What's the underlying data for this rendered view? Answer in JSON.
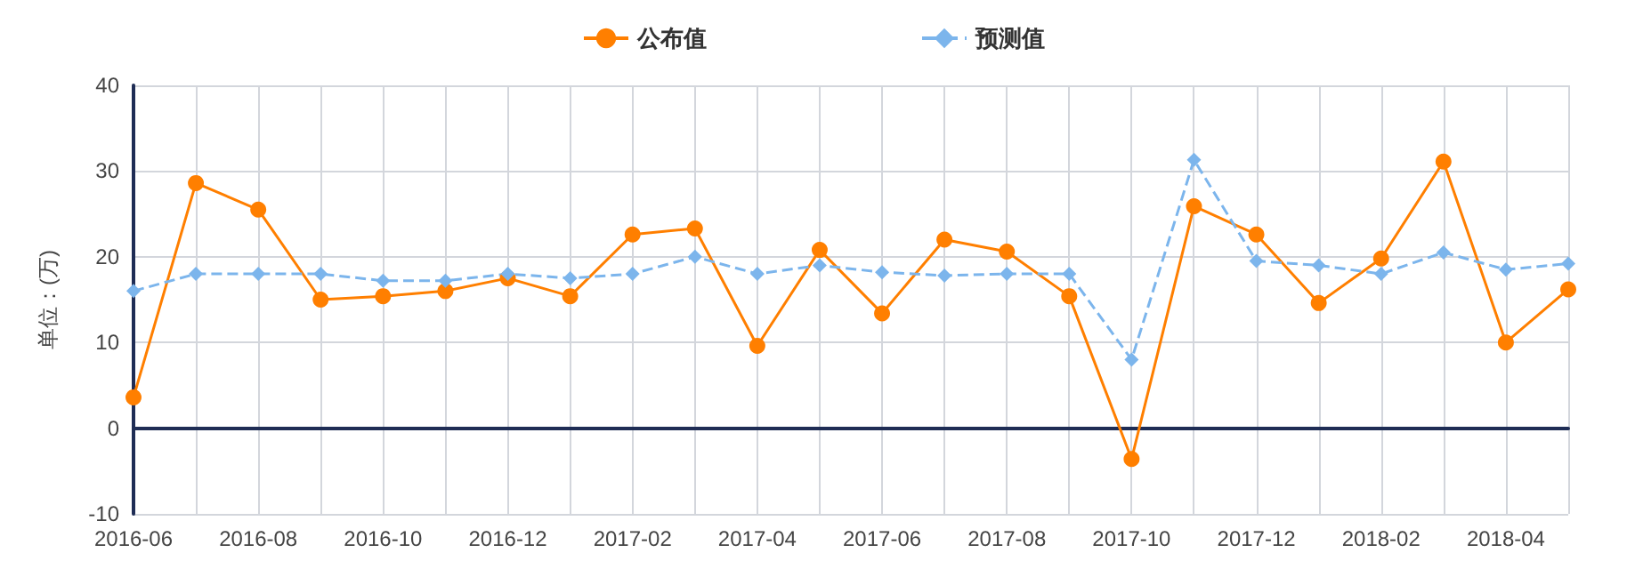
{
  "chart_data": {
    "type": "line",
    "ylabel": "单位：(万)",
    "categories": [
      "2016-06",
      null,
      "2016-08",
      null,
      "2016-10",
      null,
      "2016-12",
      null,
      "2017-02",
      null,
      "2017-04",
      null,
      "2017-06",
      null,
      "2017-08",
      null,
      "2017-10",
      null,
      "2017-12",
      null,
      "2018-02",
      null,
      "2018-04",
      null
    ],
    "series": [
      {
        "name": "公布值",
        "color": "#ff7f00",
        "marker": "circle",
        "line_style": "solid",
        "values": [
          3.6,
          28.6,
          25.5,
          15,
          15.4,
          16,
          17.5,
          15.4,
          22.6,
          23.3,
          9.6,
          20.8,
          13.4,
          22,
          20.6,
          15.4,
          -3.6,
          25.9,
          22.6,
          14.6,
          19.8,
          31.1,
          10,
          16.2
        ]
      },
      {
        "name": "预测值",
        "color": "#7cb5ec",
        "marker": "diamond",
        "line_style": "dashed",
        "values": [
          16,
          18,
          18,
          18,
          17.2,
          17.2,
          18,
          17.5,
          18,
          20,
          18,
          19,
          18.2,
          17.8,
          18,
          18,
          8,
          31.3,
          19.5,
          19,
          18,
          20.5,
          18.5,
          19.2
        ]
      }
    ],
    "ylim": [
      -10,
      40
    ],
    "yticks": [
      -10,
      0,
      10,
      20,
      30,
      40
    ],
    "grid": true,
    "legend": "top"
  }
}
